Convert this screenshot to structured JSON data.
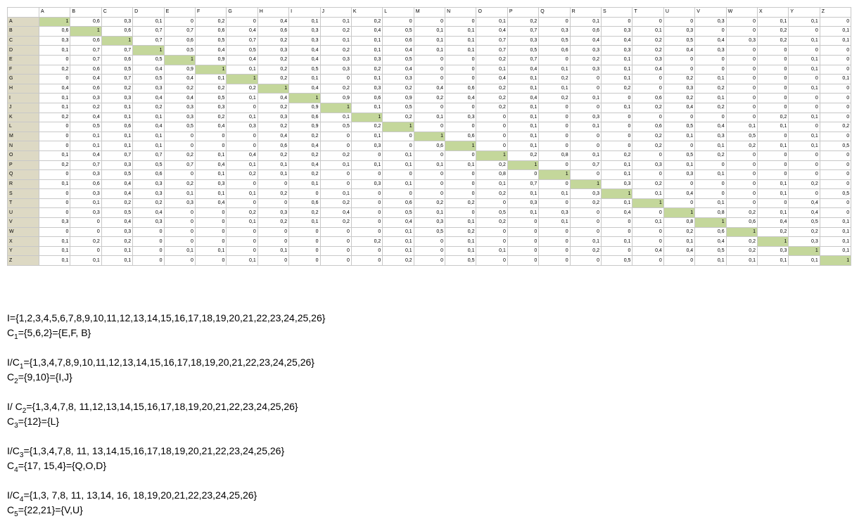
{
  "columns": [
    "A",
    "B",
    "C",
    "D",
    "E",
    "F",
    "G",
    "H",
    "I",
    "J",
    "K",
    "L",
    "M",
    "N",
    "O",
    "P",
    "Q",
    "R",
    "S",
    "T",
    "U",
    "V",
    "W",
    "X",
    "Y",
    "Z"
  ],
  "rows": [
    [
      "A",
      "1",
      "0,6",
      "0,3",
      "0,1",
      "0",
      "0,2",
      "0",
      "0,4",
      "0,1",
      "0,1",
      "0,2",
      "0",
      "0",
      "0",
      "0,1",
      "0,2",
      "0",
      "0,1",
      "0",
      "0",
      "0",
      "0,3",
      "0",
      "0,1",
      "0,1",
      "0"
    ],
    [
      "B",
      "0,6",
      "1",
      "0,6",
      "0,7",
      "0,7",
      "0,6",
      "0,4",
      "0,6",
      "0,3",
      "0,2",
      "0,4",
      "0,5",
      "0,1",
      "0,1",
      "0,4",
      "0,7",
      "0,3",
      "0,6",
      "0,3",
      "0,1",
      "0,3",
      "0",
      "0",
      "0,2",
      "0",
      "0,1"
    ],
    [
      "C",
      "0,3",
      "0,6",
      "1",
      "0,7",
      "0,6",
      "0,5",
      "0,7",
      "0,2",
      "0,3",
      "0,1",
      "0,1",
      "0,6",
      "0,1",
      "0,1",
      "0,7",
      "0,3",
      "0,5",
      "0,4",
      "0,4",
      "0,2",
      "0,5",
      "0,4",
      "0,3",
      "0,2",
      "0,1",
      "0,1"
    ],
    [
      "D",
      "0,1",
      "0,7",
      "0,7",
      "1",
      "0,5",
      "0,4",
      "0,5",
      "0,3",
      "0,4",
      "0,2",
      "0,1",
      "0,4",
      "0,1",
      "0,1",
      "0,7",
      "0,5",
      "0,6",
      "0,3",
      "0,3",
      "0,2",
      "0,4",
      "0,3",
      "0",
      "0",
      "0",
      "0"
    ],
    [
      "E",
      "0",
      "0,7",
      "0,6",
      "0,5",
      "1",
      "0,9",
      "0,4",
      "0,2",
      "0,4",
      "0,3",
      "0,3",
      "0,5",
      "0",
      "0",
      "0,2",
      "0,7",
      "0",
      "0,2",
      "0,1",
      "0,3",
      "0",
      "0",
      "0",
      "0",
      "0,1",
      "0"
    ],
    [
      "F",
      "0,2",
      "0,6",
      "0,5",
      "0,4",
      "0,9",
      "1",
      "0,1",
      "0,2",
      "0,5",
      "0,3",
      "0,2",
      "0,4",
      "0",
      "0",
      "0,1",
      "0,4",
      "0,1",
      "0,3",
      "0,1",
      "0,4",
      "0",
      "0",
      "0",
      "0",
      "0,1",
      "0"
    ],
    [
      "G",
      "0",
      "0,4",
      "0,7",
      "0,5",
      "0,4",
      "0,1",
      "1",
      "0,2",
      "0,1",
      "0",
      "0,1",
      "0,3",
      "0",
      "0",
      "0,4",
      "0,1",
      "0,2",
      "0",
      "0,1",
      "0",
      "0,2",
      "0,1",
      "0",
      "0",
      "0",
      "0,1"
    ],
    [
      "H",
      "0,4",
      "0,6",
      "0,2",
      "0,3",
      "0,2",
      "0,2",
      "0,2",
      "1",
      "0,4",
      "0,2",
      "0,3",
      "0,2",
      "0,4",
      "0,6",
      "0,2",
      "0,1",
      "0,1",
      "0",
      "0,2",
      "0",
      "0,3",
      "0,2",
      "0",
      "0",
      "0,1",
      "0"
    ],
    [
      "I",
      "0,1",
      "0,3",
      "0,3",
      "0,4",
      "0,4",
      "0,5",
      "0,1",
      "0,4",
      "1",
      "0,9",
      "0,6",
      "0,9",
      "0,2",
      "0,4",
      "0,2",
      "0,4",
      "0,2",
      "0,1",
      "0",
      "0,6",
      "0,2",
      "0,1",
      "0",
      "0",
      "0",
      "0"
    ],
    [
      "J",
      "0,1",
      "0,2",
      "0,1",
      "0,2",
      "0,3",
      "0,3",
      "0",
      "0,2",
      "0,9",
      "1",
      "0,1",
      "0,5",
      "0",
      "0",
      "0,2",
      "0,1",
      "0",
      "0",
      "0,1",
      "0,2",
      "0,4",
      "0,2",
      "0",
      "0",
      "0",
      "0"
    ],
    [
      "K",
      "0,2",
      "0,4",
      "0,1",
      "0,1",
      "0,3",
      "0,2",
      "0,1",
      "0,3",
      "0,6",
      "0,1",
      "1",
      "0,2",
      "0,1",
      "0,3",
      "0",
      "0,1",
      "0",
      "0,3",
      "0",
      "0",
      "0",
      "0",
      "0",
      "0,2",
      "0,1",
      "0"
    ],
    [
      "L",
      "0",
      "0,5",
      "0,6",
      "0,4",
      "0,5",
      "0,4",
      "0,3",
      "0,2",
      "0,9",
      "0,5",
      "0,2",
      "1",
      "0",
      "0",
      "0",
      "0,1",
      "0",
      "0,1",
      "0",
      "0,6",
      "0,5",
      "0,4",
      "0,1",
      "0,1",
      "0",
      "0,2"
    ],
    [
      "M",
      "0",
      "0,1",
      "0,1",
      "0,1",
      "0",
      "0",
      "0",
      "0,4",
      "0,2",
      "0",
      "0,1",
      "0",
      "1",
      "0,6",
      "0",
      "0,1",
      "0",
      "0",
      "0",
      "0,2",
      "0,1",
      "0,3",
      "0,5",
      "0",
      "0,1",
      "0"
    ],
    [
      "N",
      "0",
      "0,1",
      "0,1",
      "0,1",
      "0",
      "0",
      "0",
      "0,6",
      "0,4",
      "0",
      "0,3",
      "0",
      "0,6",
      "1",
      "0",
      "0,1",
      "0",
      "0",
      "0",
      "0,2",
      "0",
      "0,1",
      "0,2",
      "0,1",
      "0,1",
      "0,5"
    ],
    [
      "O",
      "0,1",
      "0,4",
      "0,7",
      "0,7",
      "0,2",
      "0,1",
      "0,4",
      "0,2",
      "0,2",
      "0,2",
      "0",
      "0,1",
      "0",
      "0",
      "1",
      "0,2",
      "0,8",
      "0,1",
      "0,2",
      "0",
      "0,5",
      "0,2",
      "0",
      "0",
      "0",
      "0"
    ],
    [
      "P",
      "0,2",
      "0,7",
      "0,3",
      "0,5",
      "0,7",
      "0,4",
      "0,1",
      "0,1",
      "0,4",
      "0,1",
      "0,1",
      "0,1",
      "0,1",
      "0,1",
      "0,2",
      "1",
      "0",
      "0,7",
      "0,1",
      "0,3",
      "0,1",
      "0",
      "0",
      "0",
      "0",
      "0"
    ],
    [
      "Q",
      "0",
      "0,3",
      "0,5",
      "0,6",
      "0",
      "0,1",
      "0,2",
      "0,1",
      "0,2",
      "0",
      "0",
      "0",
      "0",
      "0",
      "0,8",
      "0",
      "1",
      "0",
      "0,1",
      "0",
      "0,3",
      "0,1",
      "0",
      "0",
      "0",
      "0"
    ],
    [
      "R",
      "0,1",
      "0,6",
      "0,4",
      "0,3",
      "0,2",
      "0,3",
      "0",
      "0",
      "0,1",
      "0",
      "0,3",
      "0,1",
      "0",
      "0",
      "0,1",
      "0,7",
      "0",
      "1",
      "0,3",
      "0,2",
      "0",
      "0",
      "0",
      "0,1",
      "0,2",
      "0"
    ],
    [
      "S",
      "0",
      "0,3",
      "0,4",
      "0,3",
      "0,1",
      "0,1",
      "0,1",
      "0,2",
      "0",
      "0,1",
      "0",
      "0",
      "0",
      "0",
      "0,2",
      "0,1",
      "0,1",
      "0,3",
      "1",
      "0,1",
      "0,4",
      "0",
      "0",
      "0,1",
      "0",
      "0,5"
    ],
    [
      "T",
      "0",
      "0,1",
      "0,2",
      "0,2",
      "0,3",
      "0,4",
      "0",
      "0",
      "0,6",
      "0,2",
      "0",
      "0,6",
      "0,2",
      "0,2",
      "0",
      "0,3",
      "0",
      "0,2",
      "0,1",
      "1",
      "0",
      "0,1",
      "0",
      "0",
      "0,4",
      "0"
    ],
    [
      "U",
      "0",
      "0,3",
      "0,5",
      "0,4",
      "0",
      "0",
      "0,2",
      "0,3",
      "0,2",
      "0,4",
      "0",
      "0,5",
      "0,1",
      "0",
      "0,5",
      "0,1",
      "0,3",
      "0",
      "0,4",
      "0",
      "1",
      "0,8",
      "0,2",
      "0,1",
      "0,4",
      "0"
    ],
    [
      "V",
      "0,3",
      "0",
      "0,4",
      "0,3",
      "0",
      "0",
      "0,1",
      "0,2",
      "0,1",
      "0,2",
      "0",
      "0,4",
      "0,3",
      "0,1",
      "0,2",
      "0",
      "0,1",
      "0",
      "0",
      "0,1",
      "0,8",
      "1",
      "0,6",
      "0,4",
      "0,5",
      "0,1"
    ],
    [
      "W",
      "0",
      "0",
      "0,3",
      "0",
      "0",
      "0",
      "0",
      "0",
      "0",
      "0",
      "0",
      "0,1",
      "0,5",
      "0,2",
      "0",
      "0",
      "0",
      "0",
      "0",
      "0",
      "0,2",
      "0,6",
      "1",
      "0,2",
      "0,2",
      "0,1"
    ],
    [
      "X",
      "0,1",
      "0,2",
      "0,2",
      "0",
      "0",
      "0",
      "0",
      "0",
      "0",
      "0",
      "0,2",
      "0,1",
      "0",
      "0,1",
      "0",
      "0",
      "0",
      "0,1",
      "0,1",
      "0",
      "0,1",
      "0,4",
      "0,2",
      "1",
      "0,3",
      "0,1"
    ],
    [
      "Y",
      "0,1",
      "0",
      "0,1",
      "0",
      "0,1",
      "0,1",
      "0",
      "0,1",
      "0",
      "0",
      "0",
      "0,1",
      "0",
      "0,1",
      "0,1",
      "0",
      "0",
      "0,2",
      "0",
      "0,4",
      "0,4",
      "0,5",
      "0,2",
      "0,3",
      "1",
      "0,1"
    ],
    [
      "Z",
      "0,1",
      "0,1",
      "0,1",
      "0",
      "0",
      "0",
      "0,1",
      "0",
      "0",
      "0",
      "0",
      "0,2",
      "0",
      "0,5",
      "0",
      "0",
      "0",
      "0",
      "0,5",
      "0",
      "0",
      "0,1",
      "0,1",
      "0,1",
      "0,1",
      "1"
    ]
  ],
  "notes": [
    {
      "pre": "I={1,2,3,4,5,6,7,8,9,10,11,12,13,14,15,16,17,18,19,20,21,22,23,24,25,26}",
      "sub": "",
      "post": ""
    },
    {
      "pre": "C",
      "sub": "1",
      "post": "={5,6,2}={E,F, B}"
    },
    {
      "pre": "",
      "sub": "",
      "post": ""
    },
    {
      "pre": "I/C",
      "sub": "1",
      "post": "={1,3,4,7,8,9,10,11,12,13,14,15,16,17,18,19,20,21,22,23,24,25,26}"
    },
    {
      "pre": "C",
      "sub": "2",
      "post": "={9,10}={I,J}"
    },
    {
      "pre": "",
      "sub": "",
      "post": ""
    },
    {
      "pre": "I/ C",
      "sub": "2",
      "post": "={1,3,4,7,8, 11,12,13,14,15,16,17,18,19,20,21,22,23,24,25,26}"
    },
    {
      "pre": "C",
      "sub": "3",
      "post": "={12}={L}"
    },
    {
      "pre": "",
      "sub": "",
      "post": ""
    },
    {
      "pre": "I/C",
      "sub": "3",
      "post": "={1,3,4,7,8, 11, 13,14,15,16,17,18,19,20,21,22,23,24,25,26}"
    },
    {
      "pre": "C",
      "sub": "4",
      "post": "={17, 15,4}={Q,O,D}"
    },
    {
      "pre": "",
      "sub": "",
      "post": ""
    },
    {
      "pre": "I/C",
      "sub": "4",
      "post": "={1,3, 7,8, 11, 13,14, 16, 18,19,20,21,22,23,24,25,26}"
    },
    {
      "pre": "C",
      "sub": "5",
      "post": "={22,21}={V,U}"
    }
  ]
}
